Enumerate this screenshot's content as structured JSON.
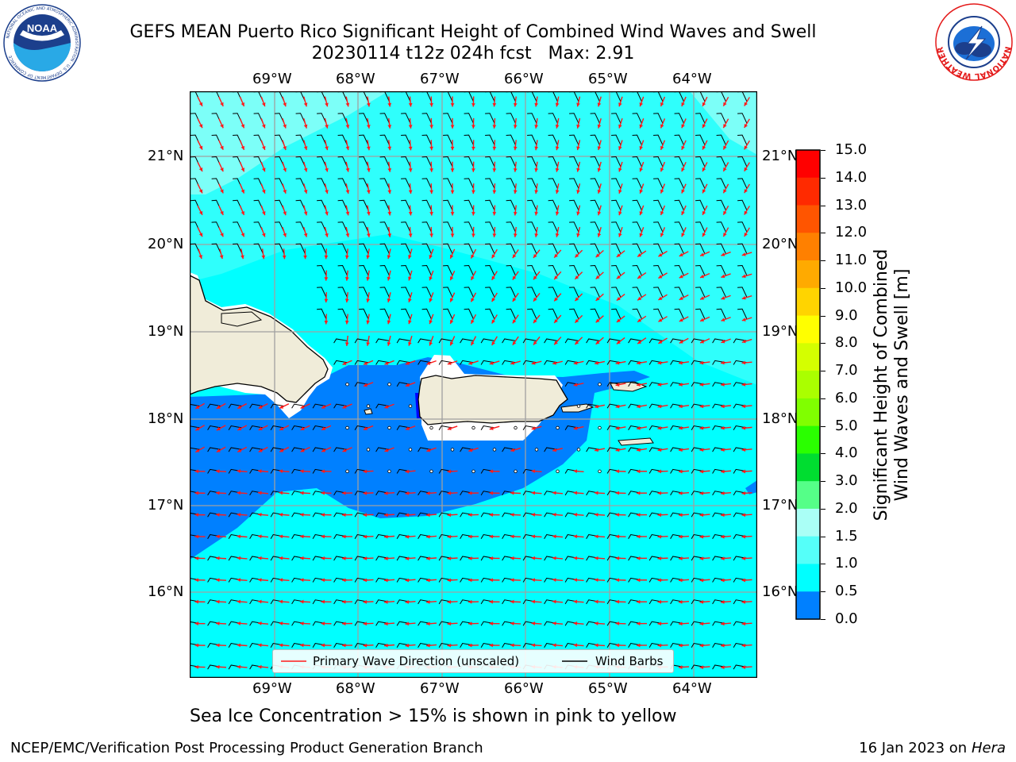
{
  "title": {
    "line1": "GEFS MEAN Puerto Rico Significant Height of Combined Wind Waves and Swell",
    "line2": "20230114 t12z 024h fcst   Max: 2.91"
  },
  "logos": {
    "left": "NOAA",
    "left_ring_text": "NATIONAL OCEANIC AND ATMOSPHERIC ADMINISTRATION · U.S. DEPARTMENT OF COMMERCE",
    "right_ring_text": "NATIONAL WEATHER SERVICE"
  },
  "map": {
    "lon_labels": [
      "69°W",
      "68°W",
      "67°W",
      "66°W",
      "65°W",
      "64°W"
    ],
    "lat_labels": [
      "21°N",
      "20°N",
      "19°N",
      "18°N",
      "17°N",
      "16°N"
    ],
    "colors": {
      "ocean_light": "#00ffff",
      "ocean_mid": "#55fff9",
      "ocean_pale": "#aafff6",
      "ocean_dark": "#0080ff",
      "ocean_deep": "#0000ff",
      "land": "#f0ecd9",
      "wave_arrow": "#ff1a1a",
      "barb": "#000000"
    }
  },
  "legend": {
    "primary_wave": "Primary Wave Direction (unscaled)",
    "wind_barbs": "Wind Barbs"
  },
  "colorbar": {
    "label_line1": "Significant Height of Combined",
    "label_line2": "Wind Waves and Swell [m]",
    "ticks": [
      "15.0",
      "14.0",
      "13.0",
      "12.0",
      "11.0",
      "10.0",
      "9.0",
      "8.0",
      "7.0",
      "6.0",
      "5.0",
      "4.0",
      "3.0",
      "2.0",
      "1.5",
      "1.0",
      "0.5",
      "0.0"
    ],
    "colors": [
      "#ff0000",
      "#ff2a00",
      "#ff5500",
      "#ff8000",
      "#ffaa00",
      "#ffd400",
      "#ffff00",
      "#d4ff00",
      "#aaff00",
      "#80ff00",
      "#2aff00",
      "#00dd30",
      "#55ff88",
      "#aafff6",
      "#55fff9",
      "#00ffff",
      "#0080ff",
      "#0000ff"
    ]
  },
  "subtitle": "Sea Ice Concentration > 15% is shown in pink to yellow",
  "footer": {
    "left": "NCEP/EMC/Verification Post Processing Product Generation Branch",
    "right_date": "16 Jan 2023 on ",
    "right_host": "Hera"
  }
}
